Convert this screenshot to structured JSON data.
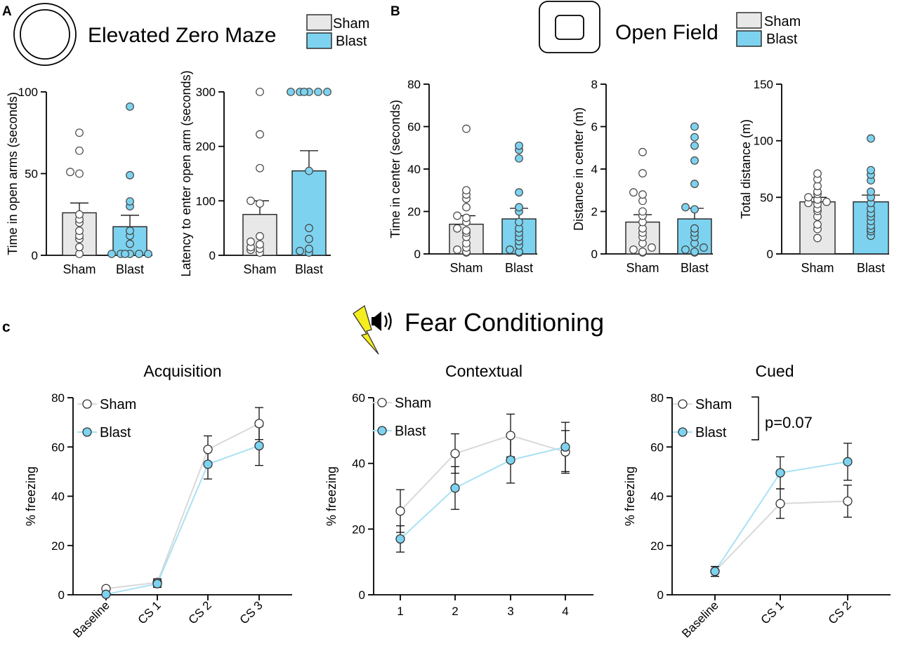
{
  "colors": {
    "sham": "#e8e8e8",
    "blast": "#7dd3ef",
    "sham_line": "#d9d9d9",
    "blast_line": "#a8e2f3",
    "outline": "#222222"
  },
  "panels": {
    "a": {
      "label": "A",
      "title": "Elevated Zero Maze",
      "icon": "circle-maze-icon",
      "legend": [
        {
          "name": "Sham"
        },
        {
          "name": "Blast"
        }
      ]
    },
    "b": {
      "label": "B",
      "title": "Open Field",
      "icon": "square-arena-icon",
      "legend": [
        {
          "name": "Sham"
        },
        {
          "name": "Blast"
        }
      ]
    },
    "c": {
      "label": "c",
      "title": "Fear Conditioning",
      "icons": [
        "lightning-bolt-icon",
        "speaker-icon"
      ]
    }
  },
  "chart_data": [
    {
      "id": "ezm-open-arms",
      "type": "bar",
      "title": "",
      "ylabel": "Time in open arms (seconds)",
      "categories": [
        "Sham",
        "Blast"
      ],
      "ylim": [
        0,
        100
      ],
      "yticks": [
        0,
        50,
        100
      ],
      "series": [
        {
          "name": "Sham",
          "mean": 26,
          "sem": 6,
          "points": [
            0,
            5,
            10,
            12,
            15,
            20,
            22,
            25,
            50,
            51,
            64,
            75
          ]
        },
        {
          "name": "Blast",
          "mean": 17.5,
          "sem": 7,
          "points": [
            0,
            0,
            0,
            0,
            0,
            0,
            7,
            12,
            15,
            30,
            33,
            49,
            91
          ]
        }
      ]
    },
    {
      "id": "ezm-latency",
      "type": "bar",
      "title": "",
      "ylabel": "Latency to enter open arm (seconds)",
      "categories": [
        "Sham",
        "Blast"
      ],
      "ylim": [
        0,
        300
      ],
      "yticks": [
        0,
        100,
        200,
        300
      ],
      "series": [
        {
          "name": "Sham",
          "mean": 75,
          "sem": 25,
          "points": [
            5,
            10,
            12,
            15,
            20,
            25,
            35,
            95,
            100,
            160,
            222,
            300
          ]
        },
        {
          "name": "Blast",
          "mean": 155,
          "sem": 37,
          "points": [
            5,
            8,
            12,
            30,
            50,
            155,
            300,
            300,
            300,
            300,
            300,
            300
          ]
        }
      ]
    },
    {
      "id": "of-time-center",
      "type": "bar",
      "title": "",
      "ylabel": "Time in center (seconds)",
      "categories": [
        "Sham",
        "Blast"
      ],
      "ylim": [
        0,
        80
      ],
      "yticks": [
        0,
        20,
        40,
        60,
        80
      ],
      "series": [
        {
          "name": "Sham",
          "mean": 14,
          "sem": 4,
          "points": [
            0,
            1,
            2,
            3,
            5,
            8,
            10,
            11,
            12,
            15,
            17,
            18,
            22,
            26,
            28,
            30,
            59
          ]
        },
        {
          "name": "Blast",
          "mean": 16.5,
          "sem": 5,
          "points": [
            0,
            1,
            2,
            4,
            6,
            8,
            10,
            12,
            15,
            20,
            22,
            29,
            45,
            49,
            51
          ]
        }
      ]
    },
    {
      "id": "of-distance-center",
      "type": "bar",
      "title": "",
      "ylabel": "Distance in center (m)",
      "categories": [
        "Sham",
        "Blast"
      ],
      "ylim": [
        0,
        8
      ],
      "yticks": [
        0,
        2,
        4,
        6,
        8
      ],
      "series": [
        {
          "name": "Sham",
          "mean": 1.5,
          "sem": 0.35,
          "points": [
            0,
            0.1,
            0.2,
            0.3,
            0.5,
            0.8,
            1.0,
            1.2,
            1.5,
            1.8,
            2.0,
            2.5,
            2.8,
            2.9,
            3.8,
            4.8
          ]
        },
        {
          "name": "Blast",
          "mean": 1.65,
          "sem": 0.5,
          "points": [
            0,
            0.1,
            0.2,
            0.3,
            0.5,
            0.8,
            1.0,
            1.2,
            2.1,
            2.2,
            3.3,
            4.4,
            5.1,
            5.5,
            6.0
          ]
        }
      ]
    },
    {
      "id": "of-total-distance",
      "type": "bar",
      "title": "",
      "ylabel": "Total distance (m)",
      "categories": [
        "Sham",
        "Blast"
      ],
      "ylim": [
        0,
        150
      ],
      "yticks": [
        0,
        50,
        100,
        150
      ],
      "series": [
        {
          "name": "Sham",
          "mean": 46,
          "sem": 4,
          "points": [
            14,
            22,
            26,
            33,
            38,
            40,
            44,
            45,
            46,
            48,
            50,
            53,
            55,
            60,
            66,
            71
          ]
        },
        {
          "name": "Blast",
          "mean": 46,
          "sem": 6,
          "points": [
            16,
            20,
            22,
            25,
            29,
            33,
            36,
            40,
            45,
            50,
            55,
            65,
            70,
            74,
            102
          ]
        }
      ]
    },
    {
      "id": "fc-acquisition",
      "type": "line",
      "title": "Acquisition",
      "ylabel": "% freezing",
      "categories": [
        "Baseline",
        "CS 1",
        "CS 2",
        "CS 3"
      ],
      "ylim": [
        0,
        80
      ],
      "yticks": [
        0,
        20,
        40,
        60,
        80
      ],
      "rotate_x": true,
      "series": [
        {
          "name": "Sham",
          "values": [
            2.5,
            5,
            59,
            69.5
          ],
          "sem": [
            0.5,
            1.5,
            5.5,
            6.5
          ]
        },
        {
          "name": "Blast",
          "values": [
            0.2,
            4.5,
            53,
            60.5
          ],
          "sem": [
            0.5,
            1.5,
            6,
            8
          ]
        }
      ],
      "annotation": ""
    },
    {
      "id": "fc-contextual",
      "type": "line",
      "title": "Contextual",
      "ylabel": "% freezing",
      "categories": [
        "1",
        "2",
        "3",
        "4"
      ],
      "ylim": [
        0,
        60
      ],
      "yticks": [
        0,
        20,
        40,
        60
      ],
      "rotate_x": false,
      "series": [
        {
          "name": "Sham",
          "values": [
            25.5,
            43,
            48.5,
            43.5
          ],
          "sem": [
            6.5,
            6,
            6.5,
            6.5
          ]
        },
        {
          "name": "Blast",
          "values": [
            17,
            32.5,
            41,
            45
          ],
          "sem": [
            4,
            6.5,
            7,
            7.5
          ]
        }
      ],
      "annotation": ""
    },
    {
      "id": "fc-cued",
      "type": "line",
      "title": "Cued",
      "ylabel": "% freezing",
      "categories": [
        "Baseline",
        "CS 1",
        "CS 2"
      ],
      "ylim": [
        0,
        80
      ],
      "yticks": [
        0,
        20,
        40,
        60,
        80
      ],
      "rotate_x": true,
      "series": [
        {
          "name": "Sham",
          "values": [
            9.5,
            37,
            38
          ],
          "sem": [
            2,
            6,
            6.5
          ]
        },
        {
          "name": "Blast",
          "values": [
            9.5,
            49.5,
            54
          ],
          "sem": [
            2,
            6.5,
            7.5
          ]
        }
      ],
      "annotation": "p=0.07"
    }
  ]
}
